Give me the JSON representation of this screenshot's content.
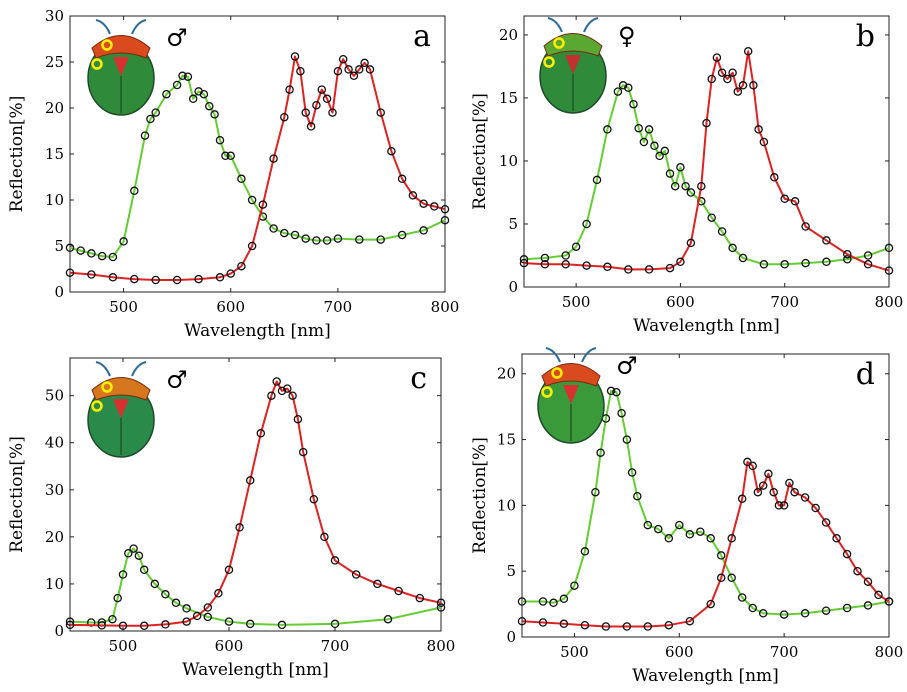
{
  "chart_data": [
    {
      "panel": "a",
      "type": "line",
      "sex_symbol": "♂",
      "xlabel": "Wavelength [nm]",
      "ylabel": "Reflection[%]",
      "xlim": [
        450,
        800
      ],
      "ylim": [
        0,
        30
      ],
      "x_ticks": [
        500,
        600,
        700,
        800
      ],
      "y_ticks": [
        0,
        5,
        10,
        15,
        20,
        25,
        30
      ],
      "grid": false,
      "series": [
        {
          "color": "#66cc33",
          "x": [
            450,
            460,
            470,
            480,
            490,
            500,
            510,
            520,
            525,
            530,
            540,
            550,
            555,
            560,
            565,
            570,
            575,
            580,
            585,
            590,
            595,
            600,
            610,
            620,
            630,
            640,
            650,
            660,
            670,
            680,
            690,
            700,
            720,
            740,
            760,
            780,
            800
          ],
          "y": [
            4.8,
            4.5,
            4.2,
            3.9,
            3.8,
            5.5,
            11,
            17,
            18.8,
            19.5,
            21.5,
            22.5,
            23.5,
            23.4,
            21,
            21.8,
            21.5,
            20.2,
            19.3,
            16.5,
            14.8,
            14.8,
            12.3,
            10,
            8.2,
            6.9,
            6.4,
            6.2,
            5.8,
            5.6,
            5.6,
            5.8,
            5.7,
            5.7,
            6.2,
            6.7,
            7.8
          ]
        },
        {
          "color": "#dd2222",
          "x": [
            450,
            470,
            490,
            510,
            530,
            550,
            570,
            590,
            600,
            610,
            620,
            630,
            640,
            650,
            655,
            660,
            665,
            670,
            675,
            680,
            685,
            690,
            695,
            700,
            705,
            710,
            715,
            720,
            725,
            730,
            740,
            750,
            760,
            770,
            780,
            790,
            800
          ],
          "y": [
            2.1,
            1.9,
            1.6,
            1.4,
            1.3,
            1.3,
            1.4,
            1.6,
            2,
            2.8,
            5,
            9.5,
            14.5,
            19,
            22,
            25.6,
            24,
            19.5,
            18,
            20.3,
            22,
            21,
            19.5,
            24,
            25.3,
            24.2,
            23.5,
            24.2,
            24.9,
            24.2,
            19.5,
            15.3,
            12.3,
            10.5,
            9.6,
            9.3,
            9
          ]
        }
      ]
    },
    {
      "panel": "b",
      "type": "line",
      "sex_symbol": "♀",
      "xlabel": "Wavelength [nm]",
      "ylabel": "Reflection[%]",
      "xlim": [
        450,
        800
      ],
      "ylim": [
        0,
        21.5
      ],
      "x_ticks": [
        500,
        600,
        700,
        800
      ],
      "y_ticks": [
        0,
        5,
        10,
        15,
        20
      ],
      "grid": false,
      "series": [
        {
          "color": "#66cc33",
          "x": [
            450,
            470,
            490,
            500,
            510,
            520,
            530,
            540,
            545,
            550,
            555,
            560,
            565,
            570,
            575,
            580,
            585,
            590,
            595,
            600,
            605,
            610,
            620,
            630,
            640,
            650,
            660,
            680,
            700,
            720,
            740,
            760,
            780,
            800
          ],
          "y": [
            2.2,
            2.3,
            2.5,
            3.2,
            5,
            8.5,
            12.5,
            15.5,
            16,
            15.8,
            14.5,
            12.6,
            11.5,
            12.5,
            11.2,
            10.4,
            10.8,
            9,
            8,
            9.5,
            8,
            7.5,
            6.8,
            5.5,
            4.4,
            3.1,
            2.3,
            1.8,
            1.8,
            1.9,
            2,
            2.2,
            2.5,
            3.1
          ]
        },
        {
          "color": "#dd2222",
          "x": [
            450,
            470,
            490,
            510,
            530,
            550,
            570,
            590,
            600,
            610,
            620,
            625,
            630,
            635,
            640,
            645,
            650,
            655,
            660,
            665,
            670,
            675,
            680,
            690,
            700,
            710,
            720,
            740,
            760,
            780,
            800
          ],
          "y": [
            1.9,
            1.8,
            1.8,
            1.7,
            1.6,
            1.4,
            1.4,
            1.5,
            2,
            3.5,
            8,
            13,
            16.5,
            18.2,
            17,
            16.5,
            17,
            15.5,
            16,
            18.7,
            16,
            12.5,
            11.5,
            8.7,
            7,
            6.8,
            4.8,
            3.7,
            2.6,
            1.8,
            1.3
          ]
        }
      ]
    },
    {
      "panel": "c",
      "type": "line",
      "sex_symbol": "♂",
      "xlabel": "Wavelength [nm]",
      "ylabel": "Reflection[%]",
      "xlim": [
        450,
        800
      ],
      "ylim": [
        0,
        58
      ],
      "x_ticks": [
        500,
        600,
        700,
        800
      ],
      "y_ticks": [
        0,
        10,
        20,
        30,
        40,
        50
      ],
      "grid": false,
      "series": [
        {
          "color": "#66cc33",
          "x": [
            450,
            470,
            480,
            490,
            495,
            500,
            505,
            510,
            515,
            520,
            530,
            540,
            550,
            560,
            580,
            600,
            620,
            650,
            700,
            750,
            800
          ],
          "y": [
            2,
            1.8,
            1.8,
            2.5,
            7,
            12,
            16.5,
            17.5,
            16,
            13,
            10,
            7.8,
            6,
            4.8,
            3,
            2,
            1.5,
            1.3,
            1.5,
            2.5,
            5
          ]
        },
        {
          "color": "#dd2222",
          "x": [
            450,
            480,
            500,
            520,
            540,
            560,
            570,
            580,
            590,
            600,
            610,
            620,
            630,
            640,
            645,
            650,
            655,
            660,
            665,
            670,
            680,
            690,
            700,
            720,
            740,
            760,
            780,
            800
          ],
          "y": [
            1.3,
            1.2,
            1.1,
            1.1,
            1.4,
            2,
            3.2,
            5,
            8,
            13,
            22,
            32,
            42,
            50,
            53,
            51,
            51.5,
            50,
            45,
            38,
            28,
            20,
            15,
            12,
            10,
            8.5,
            7,
            6
          ]
        }
      ]
    },
    {
      "panel": "d",
      "type": "line",
      "sex_symbol": "♂",
      "xlabel": "Wavelength [nm]",
      "ylabel": "Reflection[%]",
      "xlim": [
        450,
        800
      ],
      "ylim": [
        0,
        21.5
      ],
      "x_ticks": [
        500,
        600,
        700,
        800
      ],
      "y_ticks": [
        0,
        5,
        10,
        15,
        20
      ],
      "grid": false,
      "series": [
        {
          "color": "#66cc33",
          "x": [
            450,
            470,
            480,
            490,
            500,
            510,
            520,
            525,
            530,
            535,
            540,
            545,
            550,
            555,
            560,
            570,
            580,
            590,
            600,
            610,
            620,
            630,
            640,
            650,
            660,
            670,
            680,
            700,
            720,
            740,
            760,
            780,
            800
          ],
          "y": [
            2.7,
            2.7,
            2.6,
            2.9,
            3.9,
            6.5,
            11,
            14,
            16.6,
            18.7,
            18.6,
            17,
            15,
            12.5,
            10.7,
            8.5,
            8.2,
            7.5,
            8.5,
            7.8,
            8,
            7.5,
            6.2,
            4.5,
            3,
            2.2,
            1.8,
            1.7,
            1.8,
            2,
            2.2,
            2.4,
            2.7
          ]
        },
        {
          "color": "#dd2222",
          "x": [
            450,
            470,
            490,
            510,
            530,
            550,
            570,
            590,
            610,
            630,
            640,
            650,
            660,
            665,
            670,
            675,
            680,
            685,
            690,
            695,
            700,
            705,
            710,
            720,
            730,
            740,
            750,
            760,
            770,
            780,
            790,
            800
          ],
          "y": [
            1.2,
            1.1,
            1,
            0.9,
            0.8,
            0.8,
            0.8,
            0.9,
            1.2,
            2.5,
            4.5,
            7.5,
            10.5,
            13.3,
            13,
            11,
            11.5,
            12.4,
            11,
            10,
            10,
            11.7,
            11,
            10.6,
            9.8,
            8.7,
            7.5,
            6.3,
            5,
            4.2,
            3.2,
            2.7
          ]
        }
      ]
    }
  ],
  "beetle_insets": [
    {
      "label": "beetle-inset-a",
      "colors": {
        "pronotum": "#d94a1e",
        "elytra": "#2f8a3a",
        "scutellum": "#d93030"
      }
    },
    {
      "label": "beetle-inset-b",
      "colors": {
        "pronotum": "#5aa832",
        "elytra": "#2f8a3a",
        "scutellum": "#c43030"
      }
    },
    {
      "label": "beetle-inset-c",
      "colors": {
        "pronotum": "#d6761e",
        "elytra": "#2a8a4a",
        "scutellum": "#d93030"
      }
    },
    {
      "label": "beetle-inset-d",
      "colors": {
        "pronotum": "#d94a1e",
        "elytra": "#3a9a3a",
        "scutellum": "#d93030"
      }
    }
  ]
}
